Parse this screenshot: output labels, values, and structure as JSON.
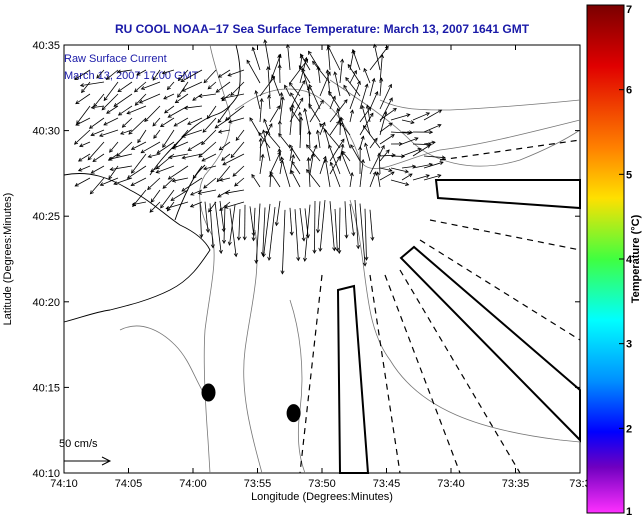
{
  "chart_data": {
    "type": "map-vector-field",
    "title": "RU COOL  NOAA−17  Sea Surface Temperature:  March 13, 2007 1641 GMT",
    "annotation_lines": [
      "Raw Surface Current",
      "March 13, 2007 17:00 GMT"
    ],
    "xlabel": "Longitude (Degrees:Minutes)",
    "ylabel": "Latitude (Degrees:Minutes)",
    "x_ticks": [
      "74:10",
      "74:05",
      "74:00",
      "73:55",
      "73:50",
      "73:45",
      "73:40",
      "73:35",
      "73:3"
    ],
    "y_ticks": [
      "40:35",
      "40:30",
      "40:25",
      "40:20",
      "40:15",
      "40:10"
    ],
    "xlim_min": [
      -74.1667,
      -73.5
    ],
    "ylim_min": [
      40.1667,
      40.5833
    ],
    "colorbar": {
      "label": "Temperature (°C)",
      "ticks": [
        "7",
        "6",
        "5",
        "4",
        "3",
        "2",
        "1"
      ],
      "range": [
        1,
        7
      ]
    },
    "scale_arrow_label": "50 cm/s",
    "markers": [
      {
        "name": "dot-1",
        "lon": "73:58.8",
        "lat": "40:14.7"
      },
      {
        "name": "dot-2",
        "lon": "73:52.2",
        "lat": "40:13.5"
      }
    ],
    "grid": false
  }
}
